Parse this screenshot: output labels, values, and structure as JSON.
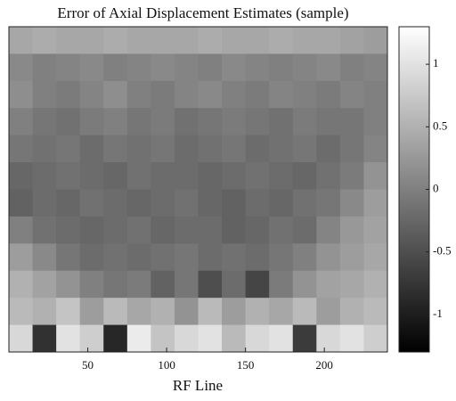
{
  "chart_data": {
    "type": "heatmap",
    "title": "Error of Axial Displacement Estimates (sample)",
    "x_label": "RF Line",
    "xlim": [
      0,
      240
    ],
    "xticks": [
      50,
      100,
      150,
      200
    ],
    "colormap": "gray",
    "clim": [
      -1.3,
      1.3
    ],
    "cticks": [
      1,
      0.5,
      0,
      -0.5,
      -1
    ],
    "values": [
      [
        0.4,
        0.45,
        0.4,
        0.4,
        0.45,
        0.4,
        0.4,
        0.4,
        0.45,
        0.4,
        0.4,
        0.45,
        0.4,
        0.4,
        0.35,
        0.3
      ],
      [
        0.1,
        0.0,
        0.05,
        0.1,
        0.0,
        0.05,
        0.1,
        0.05,
        0.0,
        0.1,
        0.05,
        0.0,
        0.05,
        0.1,
        0.0,
        0.05
      ],
      [
        0.15,
        0.0,
        -0.05,
        0.05,
        0.15,
        0.0,
        -0.05,
        0.05,
        0.1,
        0.0,
        -0.05,
        0.05,
        0.0,
        -0.05,
        0.05,
        0.0
      ],
      [
        0.0,
        -0.1,
        -0.15,
        -0.05,
        0.0,
        -0.1,
        -0.05,
        -0.15,
        -0.1,
        -0.05,
        -0.1,
        -0.15,
        -0.05,
        -0.1,
        -0.1,
        0.0
      ],
      [
        -0.1,
        -0.15,
        -0.1,
        -0.2,
        -0.1,
        -0.15,
        -0.1,
        -0.2,
        -0.15,
        -0.1,
        -0.2,
        -0.15,
        -0.1,
        -0.2,
        -0.1,
        0.05
      ],
      [
        -0.25,
        -0.2,
        -0.15,
        -0.2,
        -0.25,
        -0.15,
        -0.2,
        -0.2,
        -0.25,
        -0.2,
        -0.15,
        -0.2,
        -0.25,
        -0.15,
        -0.05,
        0.2
      ],
      [
        -0.3,
        -0.2,
        -0.25,
        -0.15,
        -0.2,
        -0.25,
        -0.2,
        -0.15,
        -0.25,
        -0.3,
        -0.2,
        -0.25,
        -0.15,
        -0.1,
        0.1,
        0.3
      ],
      [
        0.0,
        -0.15,
        -0.2,
        -0.25,
        -0.2,
        -0.15,
        -0.25,
        -0.2,
        -0.2,
        -0.3,
        -0.25,
        -0.15,
        -0.2,
        0.05,
        0.25,
        0.35
      ],
      [
        0.3,
        0.1,
        -0.1,
        -0.2,
        -0.15,
        -0.2,
        -0.15,
        -0.1,
        -0.2,
        -0.15,
        -0.2,
        -0.1,
        0.0,
        0.2,
        0.3,
        0.4
      ],
      [
        0.5,
        0.35,
        0.2,
        0.0,
        -0.1,
        -0.05,
        -0.3,
        -0.1,
        -0.5,
        -0.2,
        -0.6,
        -0.05,
        0.2,
        0.35,
        0.4,
        0.5
      ],
      [
        0.6,
        0.5,
        0.7,
        0.3,
        0.6,
        0.4,
        0.5,
        0.2,
        0.6,
        0.3,
        0.5,
        0.4,
        0.6,
        0.3,
        0.5,
        0.6
      ],
      [
        0.9,
        -0.8,
        1.0,
        0.8,
        -0.9,
        1.1,
        0.7,
        0.9,
        1.0,
        0.6,
        0.9,
        1.0,
        -0.7,
        0.9,
        1.0,
        0.8
      ]
    ]
  }
}
